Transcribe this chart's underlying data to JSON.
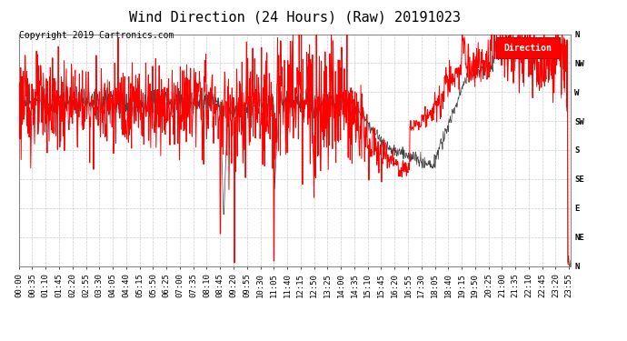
{
  "title": "Wind Direction (24 Hours) (Raw) 20191023",
  "copyright_text": "Copyright 2019 Cartronics.com",
  "legend_label": "Direction",
  "background_color": "#ffffff",
  "grid_color": "#cccccc",
  "line_color_red": "#ff0000",
  "line_color_dark": "#444444",
  "ytick_labels": [
    "N",
    "NW",
    "W",
    "SW",
    "S",
    "SE",
    "E",
    "NE",
    "N"
  ],
  "ytick_values": [
    360,
    315,
    270,
    225,
    180,
    135,
    90,
    45,
    0
  ],
  "ylim": [
    0,
    360
  ],
  "xlim_start": 0,
  "xlim_end": 1439,
  "title_fontsize": 11,
  "copyright_fontsize": 7,
  "tick_fontsize": 6.5
}
